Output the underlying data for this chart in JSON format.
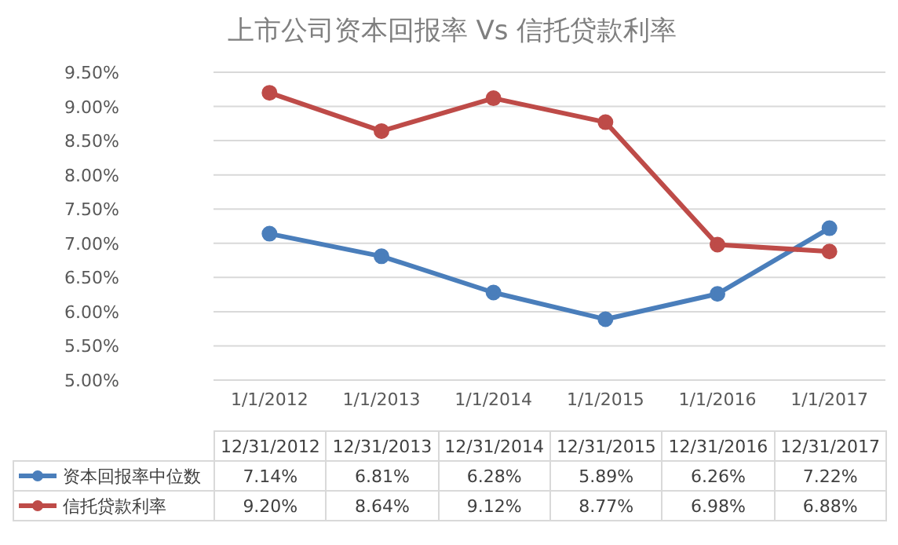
{
  "chart_data": {
    "type": "line",
    "title": "上市公司资本回报率 Vs 信托贷款利率",
    "categories": [
      "1/1/2012",
      "1/1/2013",
      "1/1/2014",
      "1/1/2015",
      "1/1/2016",
      "1/1/2017"
    ],
    "annotations": [
      "12/31/2012",
      "12/31/2013",
      "12/31/2014",
      "12/31/2015",
      "12/31/2016",
      "12/31/2017"
    ],
    "series": [
      {
        "name": "资本回报率中位数",
        "color": "#4a7ebb",
        "values": [
          7.14,
          6.81,
          6.28,
          5.89,
          6.26,
          7.22
        ],
        "value_labels": [
          "7.14%",
          "6.81%",
          "6.28%",
          "5.89%",
          "6.26%",
          "7.22%"
        ]
      },
      {
        "name": "信托贷款利率",
        "color": "#be4b48",
        "values": [
          9.2,
          8.64,
          9.12,
          8.77,
          6.98,
          6.88
        ],
        "value_labels": [
          "9.20%",
          "8.64%",
          "9.12%",
          "8.77%",
          "6.98%",
          "6.88%"
        ]
      }
    ],
    "ylim": [
      5,
      9.5
    ],
    "yticks": [
      {
        "value": 5,
        "label": "5.00%"
      },
      {
        "value": 5.5,
        "label": "5.50%"
      },
      {
        "value": 6,
        "label": "6.00%"
      },
      {
        "value": 6.5,
        "label": "6.50%"
      },
      {
        "value": 7,
        "label": "7.00%"
      },
      {
        "value": 7.5,
        "label": "7.50%"
      },
      {
        "value": 8,
        "label": "8.00%"
      },
      {
        "value": 8.5,
        "label": "8.50%"
      },
      {
        "value": 9,
        "label": "9.00%"
      },
      {
        "value": 9.5,
        "label": "9.50%"
      }
    ],
    "grid": "y",
    "legend": "bottom",
    "marker": "circle",
    "line_style": "solid"
  }
}
